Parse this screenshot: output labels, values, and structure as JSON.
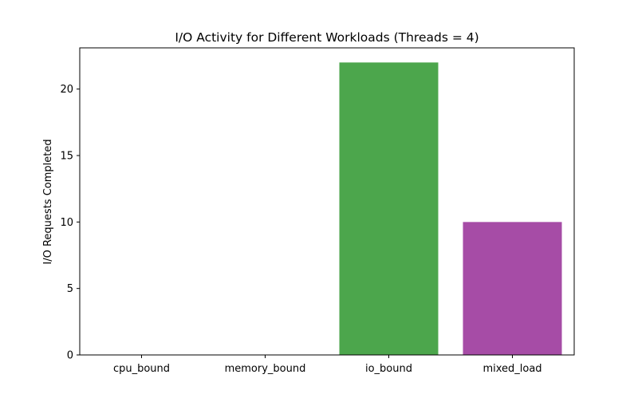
{
  "chart_data": {
    "type": "bar",
    "title": "I/O Activity for Different Workloads (Threads = 4)",
    "xlabel": "",
    "ylabel": "I/O Requests Completed",
    "categories": [
      "cpu_bound",
      "memory_bound",
      "io_bound",
      "mixed_load"
    ],
    "values": [
      0,
      0,
      22,
      10
    ],
    "colors": [
      "#1f77b4",
      "#ff7f0e",
      "#4ca64c",
      "#a64ca6"
    ],
    "ylim": [
      0,
      23.1
    ],
    "yticks": [
      0,
      5,
      10,
      15,
      20
    ],
    "ytick_labels": [
      "0",
      "5",
      "10",
      "15",
      "20"
    ],
    "grid": false,
    "legend": "none"
  }
}
